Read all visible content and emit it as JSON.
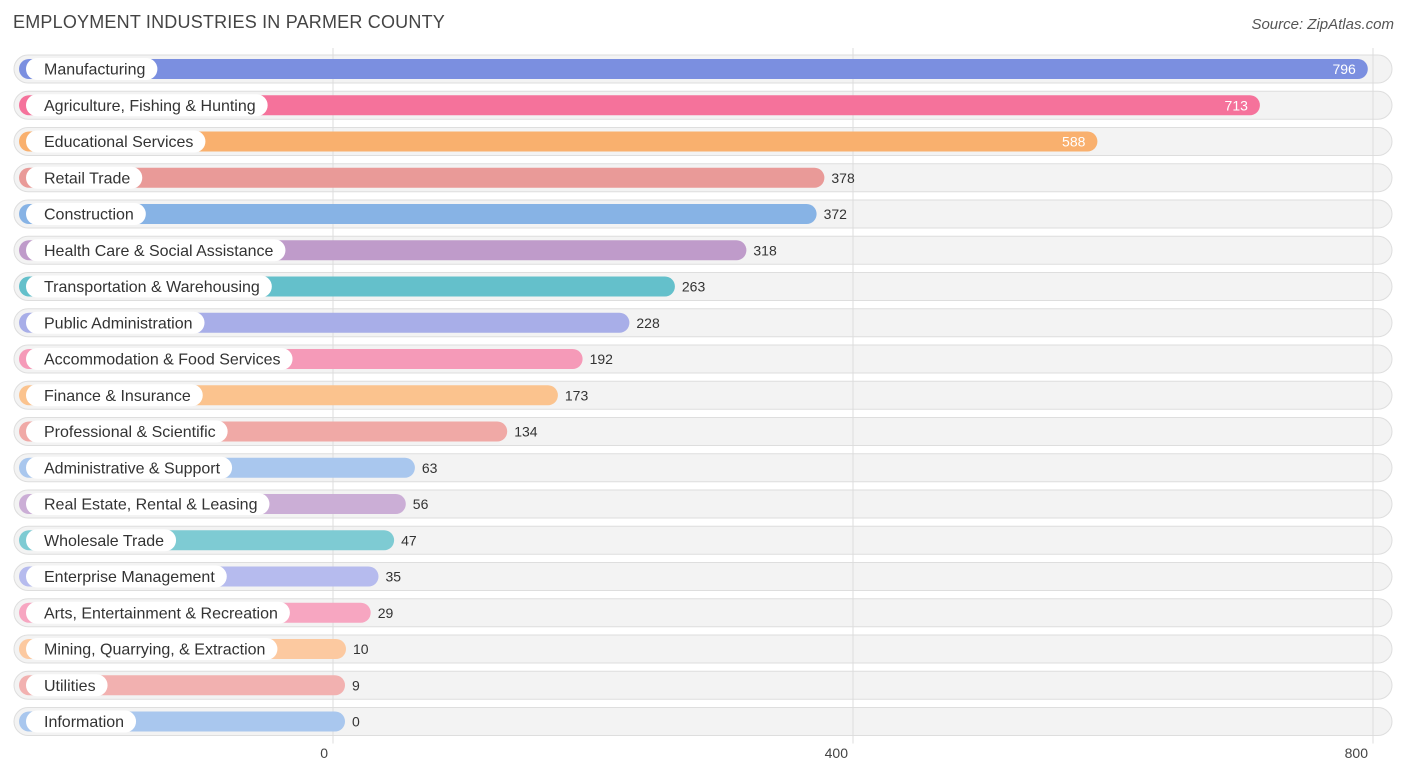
{
  "chart_data": {
    "type": "bar",
    "orientation": "horizontal",
    "title": "EMPLOYMENT INDUSTRIES IN PARMER COUNTY",
    "source": "Source: ZipAtlas.com",
    "xlim": [
      0,
      800
    ],
    "xticks": [
      0,
      400,
      800
    ],
    "grid": true,
    "categories": [
      "Manufacturing",
      "Agriculture, Fishing & Hunting",
      "Educational Services",
      "Retail Trade",
      "Construction",
      "Health Care & Social Assistance",
      "Transportation & Warehousing",
      "Public Administration",
      "Accommodation & Food Services",
      "Finance & Insurance",
      "Professional & Scientific",
      "Administrative & Support",
      "Real Estate, Rental & Leasing",
      "Wholesale Trade",
      "Enterprise Management",
      "Arts, Entertainment & Recreation",
      "Mining, Quarrying, & Extraction",
      "Utilities",
      "Information"
    ],
    "values": [
      796,
      713,
      588,
      378,
      372,
      318,
      263,
      228,
      192,
      173,
      134,
      63,
      56,
      47,
      35,
      29,
      10,
      9,
      0
    ],
    "colors": [
      "#7b8fe0",
      "#f5729b",
      "#f9b06e",
      "#e99a98",
      "#87b3e5",
      "#bf9bca",
      "#64c0cb",
      "#a8aee8",
      "#f59ab8",
      "#fbc38e",
      "#f0a9a6",
      "#a9c7ee",
      "#cbaed6",
      "#7ecbd3",
      "#b6bbee",
      "#f7a6c1",
      "#fcc9a0",
      "#f2b1b0",
      "#a9c7ee"
    ]
  }
}
